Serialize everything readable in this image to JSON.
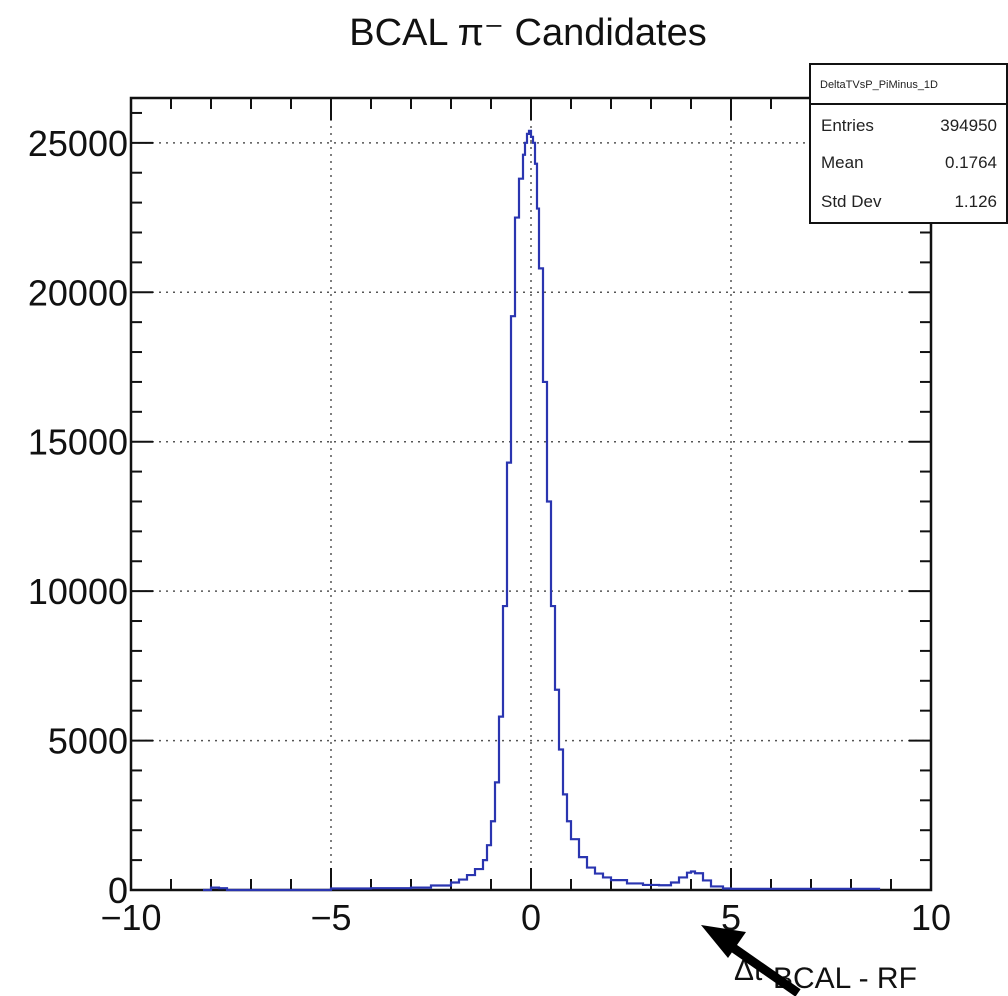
{
  "chart_data": {
    "type": "line",
    "style": "step-histogram",
    "title": "BCAL π⁻ Candidates",
    "xlabel": "Δt",
    "xlabel_subscript": "BCAL - RF",
    "ylabel": "",
    "xlim": [
      -10,
      10
    ],
    "ylim": [
      0,
      26500
    ],
    "x_ticks": [
      -10,
      -5,
      0,
      5,
      10
    ],
    "x_tick_labels": [
      "−10",
      "−5",
      "0",
      "5",
      "10"
    ],
    "y_ticks": [
      0,
      5000,
      10000,
      15000,
      20000,
      25000
    ],
    "y_tick_labels": [
      "0",
      "5000",
      "10000",
      "15000",
      "20000",
      "25000"
    ],
    "grid": true,
    "line_color": "#2a35b0",
    "series": [
      {
        "x": [
          -8.2,
          -8.0,
          -7.8,
          -7.6,
          -5.0,
          -4.0,
          -3.0,
          -2.5,
          -2.0,
          -1.8,
          -1.6,
          -1.4,
          -1.2,
          -1.1,
          -1.0,
          -0.9,
          -0.8,
          -0.7,
          -0.6,
          -0.5,
          -0.4,
          -0.3,
          -0.2,
          -0.15,
          -0.1,
          -0.05,
          0.0,
          0.05,
          0.1,
          0.15,
          0.2,
          0.3,
          0.4,
          0.5,
          0.6,
          0.7,
          0.8,
          0.9,
          1.0,
          1.2,
          1.4,
          1.6,
          1.8,
          2.0,
          2.4,
          2.8,
          3.2,
          3.5,
          3.7,
          3.9,
          4.0,
          4.1,
          4.3,
          4.5,
          4.8,
          5.0,
          6.0,
          7.0,
          8.0,
          8.7
        ],
        "y": [
          0,
          80,
          60,
          0,
          50,
          60,
          80,
          150,
          250,
          350,
          500,
          700,
          1000,
          1500,
          2300,
          3600,
          5800,
          9500,
          14300,
          19200,
          22500,
          23800,
          24600,
          25000,
          25300,
          25400,
          25200,
          25000,
          24300,
          22800,
          20800,
          17000,
          13000,
          9500,
          6700,
          4700,
          3200,
          2300,
          1700,
          1100,
          750,
          550,
          420,
          330,
          220,
          170,
          160,
          250,
          420,
          580,
          620,
          560,
          320,
          120,
          50,
          40,
          40,
          40,
          40,
          0
        ]
      }
    ],
    "stats_box": {
      "name": "DeltaTVsP_PiMinus_1D",
      "rows": [
        {
          "label": "Entries",
          "value": "394950"
        },
        {
          "label": "Mean",
          "value": "0.1764"
        },
        {
          "label": "Std Dev",
          "value": "1.126"
        }
      ]
    }
  }
}
